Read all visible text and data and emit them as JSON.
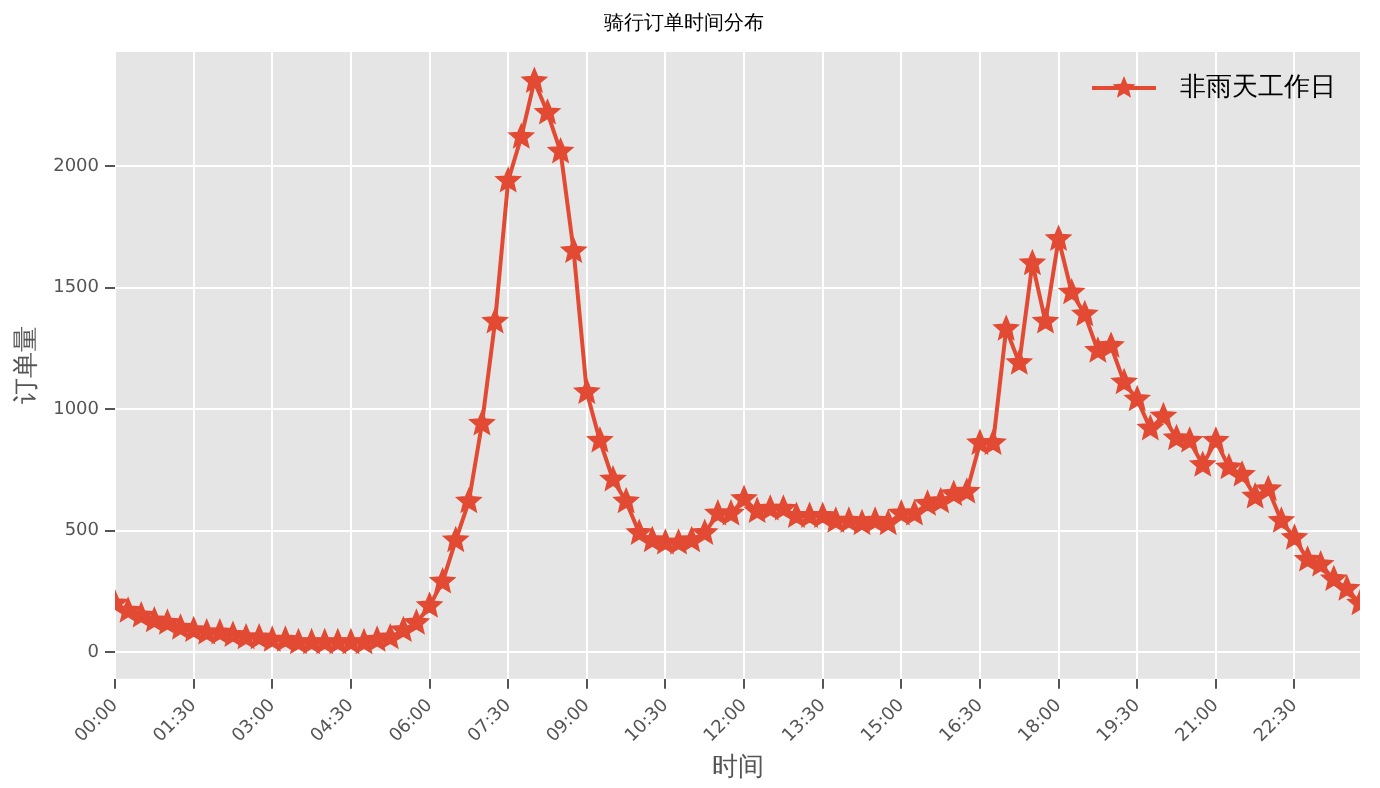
{
  "chart_data": {
    "type": "line",
    "title": "骑行订单时间分布",
    "xlabel": "时间",
    "ylabel": "订单量",
    "x": [
      0,
      0.25,
      0.5,
      0.75,
      1,
      1.25,
      1.5,
      1.75,
      2,
      2.25,
      2.5,
      2.75,
      3,
      3.25,
      3.5,
      3.75,
      4,
      4.25,
      4.5,
      4.75,
      5,
      5.25,
      5.5,
      5.75,
      6,
      6.25,
      6.5,
      6.75,
      7,
      7.25,
      7.5,
      7.75,
      8,
      8.25,
      8.5,
      8.75,
      9,
      9.25,
      9.5,
      9.75,
      10,
      10.25,
      10.5,
      10.75,
      11,
      11.25,
      11.5,
      11.75,
      12,
      12.25,
      12.5,
      12.75,
      13,
      13.25,
      13.5,
      13.75,
      14,
      14.25,
      14.5,
      14.75,
      15,
      15.25,
      15.5,
      15.75,
      16,
      16.25,
      16.5,
      16.75,
      17,
      17.25,
      17.5,
      17.75,
      18,
      18.25,
      18.5,
      18.75,
      19,
      19.25,
      19.5,
      19.75,
      20,
      20.25,
      20.5,
      20.75,
      21,
      21.25,
      21.5,
      21.75,
      22,
      22.25,
      22.5,
      22.75,
      23,
      23.25,
      23.5,
      23.75
    ],
    "series": [
      {
        "name": "非雨天工作日",
        "color": "#e24a33",
        "values": [
          200,
          170,
          150,
          130,
          120,
          100,
          90,
          80,
          80,
          70,
          60,
          60,
          50,
          50,
          40,
          40,
          40,
          40,
          40,
          40,
          50,
          60,
          90,
          120,
          190,
          290,
          460,
          620,
          940,
          1360,
          1940,
          2120,
          2350,
          2220,
          2060,
          1650,
          1070,
          870,
          710,
          620,
          490,
          460,
          450,
          450,
          460,
          490,
          570,
          570,
          630,
          580,
          590,
          590,
          560,
          560,
          560,
          540,
          540,
          530,
          540,
          530,
          570,
          570,
          610,
          620,
          650,
          660,
          860,
          860,
          1330,
          1190,
          1600,
          1360,
          1700,
          1480,
          1390,
          1240,
          1260,
          1110,
          1040,
          920,
          970,
          880,
          870,
          770,
          870,
          760,
          730,
          640,
          670,
          540,
          470,
          380,
          360,
          300,
          260,
          200
        ]
      }
    ],
    "xlim": [
      0,
      23.75
    ],
    "xticks": [
      {
        "value": 0,
        "label": "00:00"
      },
      {
        "value": 1.5,
        "label": "01:30"
      },
      {
        "value": 3,
        "label": "03:00"
      },
      {
        "value": 4.5,
        "label": "04:30"
      },
      {
        "value": 6,
        "label": "06:00"
      },
      {
        "value": 7.5,
        "label": "07:30"
      },
      {
        "value": 9,
        "label": "09:00"
      },
      {
        "value": 10.5,
        "label": "10:30"
      },
      {
        "value": 12,
        "label": "12:00"
      },
      {
        "value": 13.5,
        "label": "13:30"
      },
      {
        "value": 15,
        "label": "15:00"
      },
      {
        "value": 16.5,
        "label": "16:30"
      },
      {
        "value": 18,
        "label": "18:00"
      },
      {
        "value": 19.5,
        "label": "19:30"
      },
      {
        "value": 21,
        "label": "21:00"
      },
      {
        "value": 22.5,
        "label": "22:30"
      }
    ],
    "ylim": [
      -110,
      2470
    ],
    "yticks": [
      0,
      500,
      1000,
      1500,
      2000
    ],
    "grid": true,
    "legend": "top right",
    "marker": "star",
    "line_style": "solid"
  }
}
